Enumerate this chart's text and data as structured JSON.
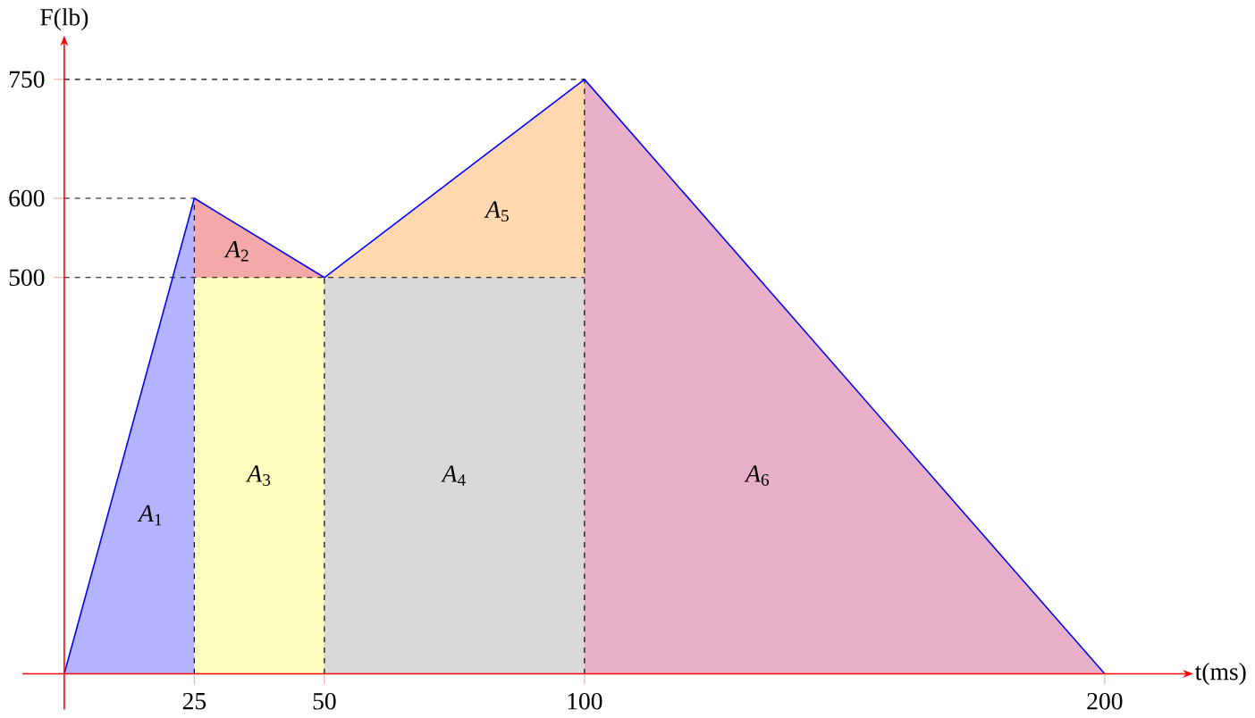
{
  "chart_data": {
    "type": "line",
    "xlabel": "t(ms)",
    "ylabel": "F(lb)",
    "xlim": [
      -8,
      215
    ],
    "ylim": [
      -45,
      792
    ],
    "xticks": [
      25,
      50,
      100,
      200
    ],
    "yticks": [
      500,
      600,
      750
    ],
    "grid": false,
    "marker": "none",
    "series": [
      {
        "type": "area",
        "name": "*A*$_{1}$",
        "color": "#b3b3ff",
        "x": [
          0,
          25
        ],
        "values": [
          0,
          600
        ]
      },
      {
        "type": "area",
        "name": "*A*$_{2}$",
        "color": "#f4a8a8",
        "x": [
          25,
          50
        ],
        "values": [
          600,
          500
        ]
      },
      {
        "type": "area",
        "name": "*A*$_{3}$",
        "color": "#ffffc0",
        "x": [
          25,
          50
        ],
        "values": [
          500,
          500
        ]
      },
      {
        "type": "area",
        "name": "*A*$_{5}$",
        "color": "#ffd8b0",
        "x": [
          50,
          100
        ],
        "values": [
          500,
          750
        ]
      },
      {
        "type": "area",
        "name": "*A*$_{4}$",
        "color": "#d9d9d9",
        "x": [
          50,
          100
        ],
        "values": [
          500,
          500
        ]
      },
      {
        "type": "area",
        "name": "*A*$_{6}$",
        "color": "#e8b0c8",
        "x": [
          100,
          200
        ],
        "values": [
          750,
          0
        ]
      },
      {
        "color": "#000000",
        "line_style": "dashed",
        "x": [
          0,
          25
        ],
        "values": [
          600,
          600
        ]
      },
      {
        "color": "#000000",
        "line_style": "dashed",
        "x": [
          0,
          100
        ],
        "values": [
          500,
          500
        ]
      },
      {
        "color": "#000000",
        "line_style": "dashed",
        "x": [
          0,
          100
        ],
        "values": [
          750,
          750
        ]
      },
      {
        "color": "#000000",
        "line_style": "dashed",
        "x": [
          25,
          25
        ],
        "values": [
          0,
          600
        ]
      },
      {
        "color": "#000000",
        "line_style": "dashed",
        "x": [
          50,
          50
        ],
        "values": [
          0,
          500
        ]
      },
      {
        "color": "#000000",
        "line_style": "dashed",
        "x": [
          100,
          100
        ],
        "values": [
          0,
          750
        ]
      },
      {
        "color": "#0000ff",
        "line_style": "solid",
        "x": [
          0,
          25,
          50,
          100,
          200
        ],
        "values": [
          0,
          600,
          500,
          750,
          0
        ]
      }
    ]
  }
}
